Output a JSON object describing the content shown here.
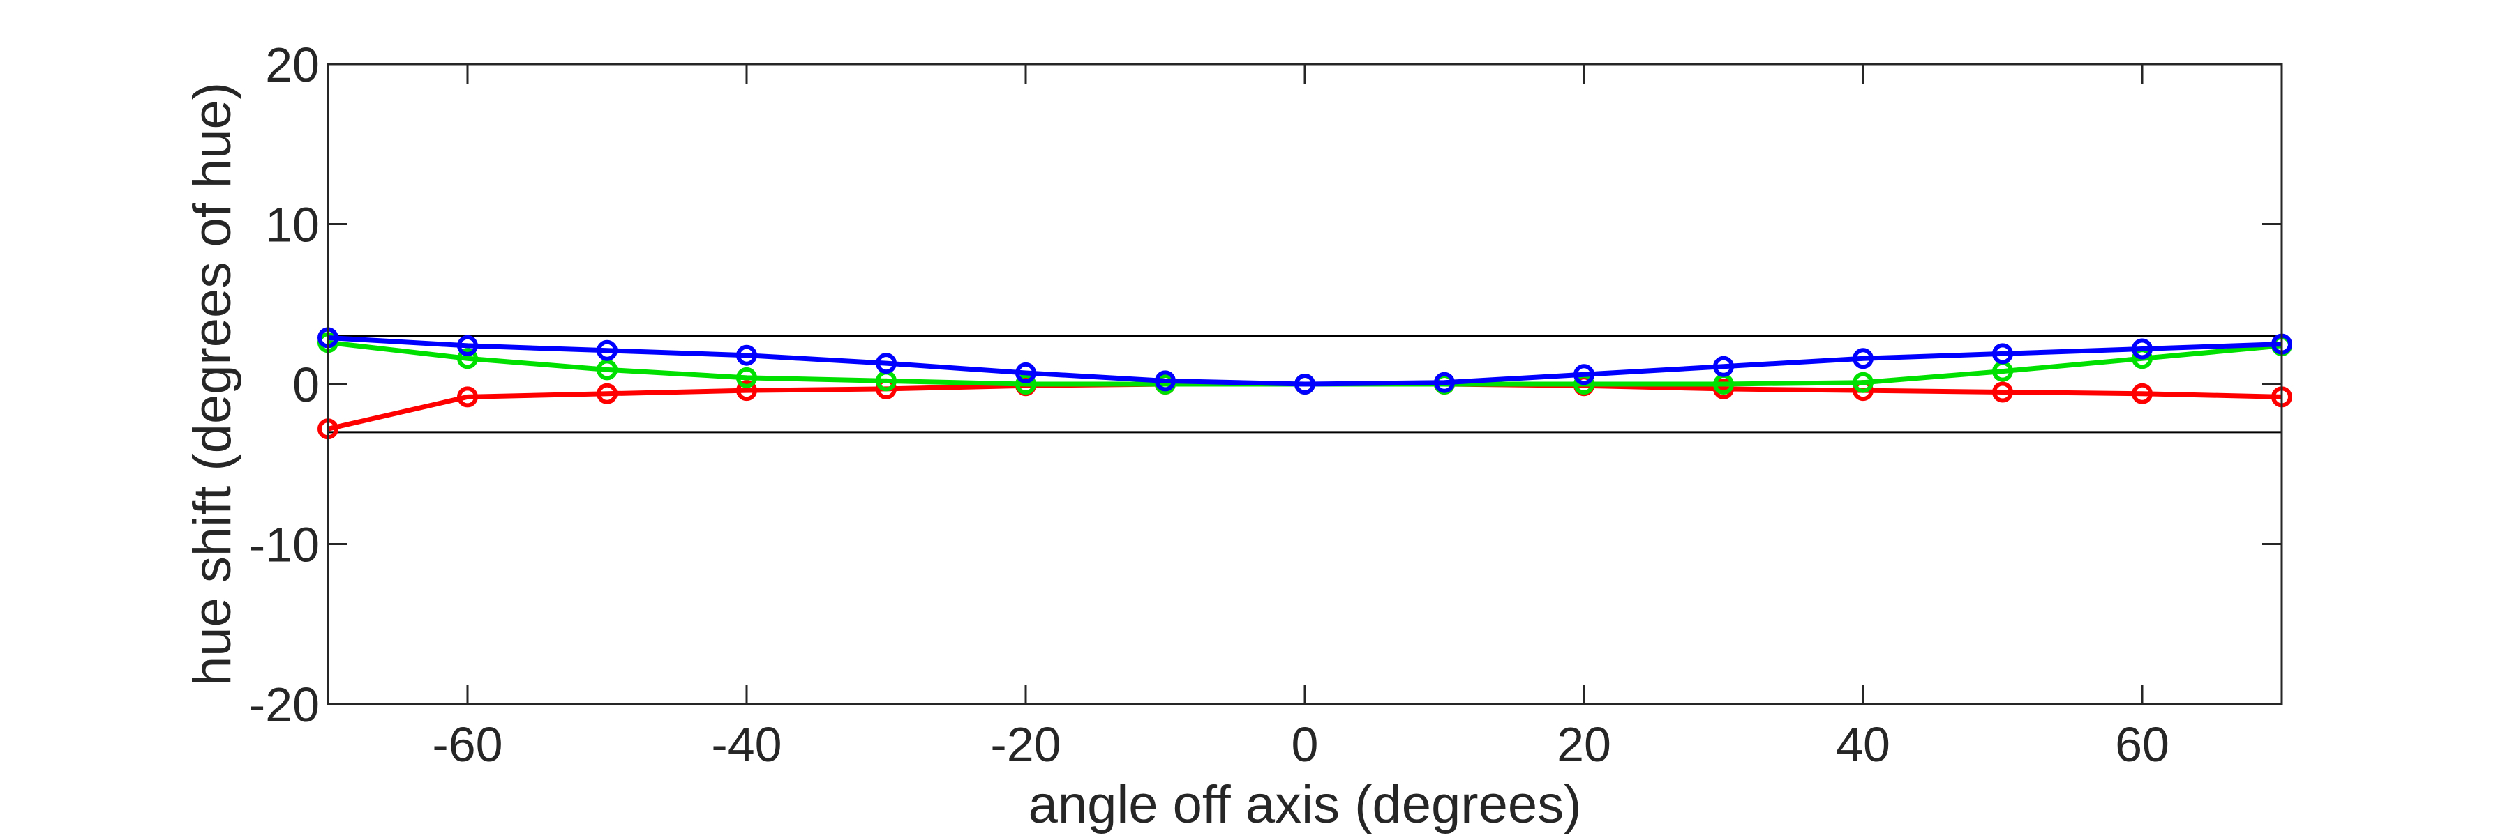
{
  "chart_data": {
    "type": "line",
    "title": "",
    "xlabel": "angle off axis (degrees)",
    "ylabel": "hue shift (degrees of hue)",
    "xlim": [
      -70,
      70
    ],
    "ylim": [
      -20,
      20
    ],
    "xticks": [
      -60,
      -40,
      -20,
      0,
      20,
      40,
      60
    ],
    "yticks": [
      -20,
      -10,
      0,
      10,
      20
    ],
    "grid": false,
    "x": [
      -70,
      -60,
      -50,
      -40,
      -30,
      -20,
      -10,
      0,
      10,
      20,
      30,
      40,
      50,
      60,
      70
    ],
    "reference_lines": [
      3,
      -3
    ],
    "series": [
      {
        "color": "#ff0000",
        "marker": "circle",
        "values": [
          -2.8,
          -0.8,
          -0.6,
          -0.4,
          -0.3,
          -0.1,
          0.0,
          0.0,
          0.0,
          -0.1,
          -0.3,
          -0.4,
          -0.5,
          -0.6,
          -0.8
        ]
      },
      {
        "color": "#00e000",
        "marker": "circle",
        "values": [
          2.6,
          1.6,
          0.9,
          0.4,
          0.2,
          0.0,
          0.0,
          0.0,
          0.0,
          0.0,
          0.0,
          0.1,
          0.8,
          1.6,
          2.4
        ]
      },
      {
        "color": "#0000ff",
        "marker": "circle",
        "values": [
          2.9,
          2.4,
          2.1,
          1.8,
          1.3,
          0.7,
          0.2,
          0.0,
          0.1,
          0.6,
          1.1,
          1.6,
          1.9,
          2.2,
          2.5
        ]
      }
    ]
  }
}
